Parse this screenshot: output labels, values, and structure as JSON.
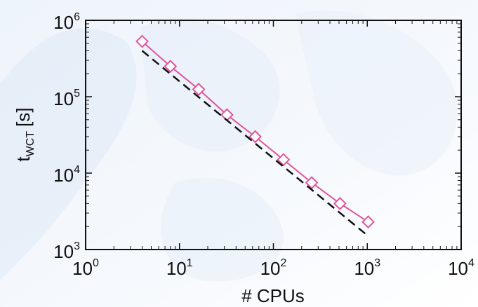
{
  "chart_data": {
    "type": "line",
    "xscale": "log",
    "yscale": "log",
    "xlim": [
      1,
      10000
    ],
    "ylim": [
      1000,
      1000000
    ],
    "xlabel": "# CPUs",
    "ylabel": {
      "base": "t",
      "subscript": "WCT",
      "unit": "[s]"
    },
    "x_ticks": [
      {
        "base": "10",
        "exp": "0",
        "value": 1
      },
      {
        "base": "10",
        "exp": "1",
        "value": 10
      },
      {
        "base": "10",
        "exp": "2",
        "value": 100
      },
      {
        "base": "10",
        "exp": "3",
        "value": 1000
      },
      {
        "base": "10",
        "exp": "4",
        "value": 10000
      }
    ],
    "y_ticks": [
      {
        "base": "10",
        "exp": "3",
        "value": 1000
      },
      {
        "base": "10",
        "exp": "4",
        "value": 10000
      },
      {
        "base": "10",
        "exp": "5",
        "value": 100000
      },
      {
        "base": "10",
        "exp": "6",
        "value": 1000000
      }
    ],
    "series": [
      {
        "style": "solid-diamond",
        "color": "#e0559e",
        "x": [
          4,
          8,
          16,
          32,
          64,
          128,
          256,
          512,
          1024
        ],
        "y": [
          530000,
          250000,
          125000,
          58000,
          30000,
          15000,
          7500,
          4000,
          2300
        ]
      },
      {
        "style": "dashed",
        "color": "#111111",
        "x": [
          4,
          1024
        ],
        "y": [
          400000,
          1500
        ]
      }
    ],
    "grid": false
  }
}
